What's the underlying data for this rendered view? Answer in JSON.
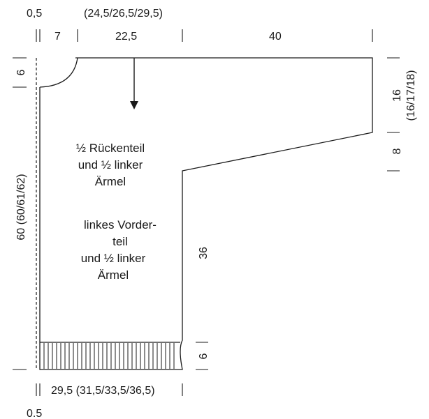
{
  "dimensions": {
    "top_seam_allowance": "0,5",
    "top_sizes_combined": "(24,5/26,5/29,5)",
    "top_neck_width": "7",
    "top_shoulder_width": "22,5",
    "top_sleeve_length": "40",
    "left_neck_depth": "6",
    "left_total_length": "60 (60/61/62)",
    "right_cuff_width": "16",
    "right_cuff_width_sizes": "(16/17/18)",
    "right_sleeve_slope": "8",
    "body_side_length": "36",
    "ribbing_height": "6",
    "bottom_width": "29,5 (31,5/33,5/36,5)",
    "bottom_seam_allowance": "0.5"
  },
  "labels": {
    "back_line1": "½ Rückenteil",
    "back_line2": "und ½ linker",
    "back_line3": "Ärmel",
    "front_line1": "linkes Vorder-",
    "front_line2": "teil",
    "front_line3": "und ½ linker",
    "front_line4": "Ärmel"
  }
}
